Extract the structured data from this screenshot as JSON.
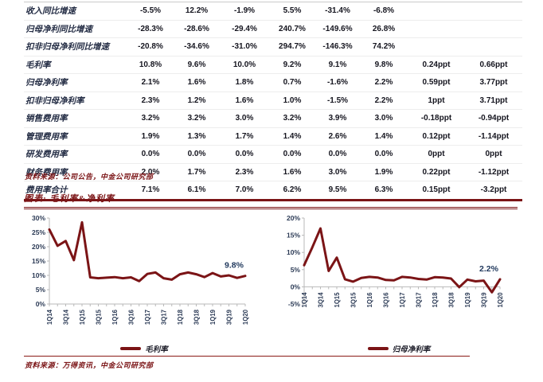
{
  "colors": {
    "accent": "#7b1416",
    "line": "#7b1416",
    "axis_line": "#b9b9b9",
    "axis_text": "#2b3a55",
    "end_label_text": "#223a5e",
    "table_rule": "#7b1416",
    "value_text": "#15151f"
  },
  "table": {
    "rows": [
      {
        "label": "收入同比增速",
        "values": [
          "-5.5%",
          "12.2%",
          "-1.9%",
          "5.5%",
          "-31.4%",
          "-6.8%",
          "",
          ""
        ]
      },
      {
        "label": "归母净利同比增速",
        "values": [
          "-28.3%",
          "-28.6%",
          "-29.4%",
          "240.7%",
          "-149.6%",
          "26.8%",
          "",
          ""
        ]
      },
      {
        "label": "扣非归母净利同比增速",
        "values": [
          "-20.8%",
          "-34.6%",
          "-31.0%",
          "294.7%",
          "-146.3%",
          "74.2%",
          "",
          ""
        ]
      },
      {
        "label": "毛利率",
        "values": [
          "10.8%",
          "9.6%",
          "10.0%",
          "9.2%",
          "9.1%",
          "9.8%",
          "0.24ppt",
          "0.66ppt"
        ]
      },
      {
        "label": "归母净利率",
        "values": [
          "2.1%",
          "1.6%",
          "1.8%",
          "0.7%",
          "-1.6%",
          "2.2%",
          "0.59ppt",
          "3.77ppt"
        ]
      },
      {
        "label": "扣非归母净利率",
        "values": [
          "2.3%",
          "1.2%",
          "1.6%",
          "1.0%",
          "-1.5%",
          "2.2%",
          "1ppt",
          "3.71ppt"
        ]
      },
      {
        "label": "销售费用率",
        "values": [
          "3.2%",
          "3.2%",
          "3.0%",
          "3.2%",
          "3.9%",
          "3.0%",
          "-0.18ppt",
          "-0.94ppt"
        ]
      },
      {
        "label": "管理费用率",
        "values": [
          "1.9%",
          "1.3%",
          "1.7%",
          "1.4%",
          "2.6%",
          "1.4%",
          "0.12ppt",
          "-1.14ppt"
        ]
      },
      {
        "label": "研发费用率",
        "values": [
          "0.0%",
          "0.0%",
          "0.0%",
          "0.0%",
          "0.0%",
          "0.0%",
          "0ppt",
          "0ppt"
        ]
      },
      {
        "label": "财务费用率",
        "values": [
          "2.0%",
          "1.7%",
          "2.3%",
          "1.6%",
          "3.0%",
          "1.9%",
          "0.22ppt",
          "-1.12ppt"
        ]
      },
      {
        "label": "费用率合计",
        "values": [
          "7.1%",
          "6.1%",
          "7.0%",
          "6.2%",
          "9.5%",
          "6.3%",
          "0.15ppt",
          "-3.2ppt"
        ]
      }
    ]
  },
  "table_source": "资料来源：公司公告，中金公司研究部",
  "figure": {
    "title": "图表: 毛利率&净利率"
  },
  "chart_data": [
    {
      "type": "line",
      "title": "毛利率",
      "x": [
        "1Q14",
        "2Q14",
        "3Q14",
        "4Q14",
        "1Q15",
        "2Q15",
        "3Q15",
        "4Q15",
        "1Q16",
        "2Q16",
        "3Q16",
        "4Q16",
        "1Q17",
        "2Q17",
        "3Q17",
        "4Q17",
        "1Q18",
        "2Q18",
        "3Q18",
        "4Q18",
        "1Q19",
        "2Q19",
        "3Q19",
        "4Q19",
        "1Q20"
      ],
      "x_tick_labels": [
        "1Q14",
        "3Q14",
        "1Q15",
        "3Q15",
        "1Q16",
        "3Q16",
        "1Q17",
        "3Q17",
        "1Q18",
        "3Q18",
        "1Q19",
        "3Q19",
        "1Q20"
      ],
      "series": [
        {
          "name": "毛利率",
          "values": [
            26.0,
            20.3,
            22.0,
            15.3,
            28.5,
            9.3,
            9.0,
            9.2,
            9.4,
            9.0,
            9.3,
            8.0,
            10.5,
            11.0,
            9.0,
            8.5,
            10.4,
            11.0,
            10.4,
            9.4,
            10.8,
            9.6,
            10.0,
            9.1,
            9.8
          ]
        }
      ],
      "ylim": [
        0,
        30
      ],
      "ytick_step": 5,
      "grid": false,
      "legend": "毛利率",
      "legend_position": "bottom",
      "end_label": "9.8%"
    },
    {
      "type": "line",
      "title": "归母净利率",
      "x": [
        "1Q14",
        "2Q14",
        "3Q14",
        "4Q14",
        "1Q15",
        "2Q15",
        "3Q15",
        "4Q15",
        "1Q16",
        "2Q16",
        "3Q16",
        "4Q16",
        "1Q17",
        "2Q17",
        "3Q17",
        "4Q17",
        "1Q18",
        "2Q18",
        "3Q18",
        "4Q18",
        "1Q19",
        "2Q19",
        "3Q19",
        "4Q19",
        "1Q20"
      ],
      "x_tick_labels": [
        "1Q14",
        "3Q14",
        "1Q15",
        "3Q15",
        "1Q16",
        "3Q16",
        "1Q17",
        "3Q17",
        "1Q18",
        "3Q18",
        "1Q19",
        "3Q19",
        "1Q20"
      ],
      "series": [
        {
          "name": "归母净利率",
          "values": [
            6.3,
            11.5,
            17.0,
            4.6,
            8.5,
            2.2,
            1.5,
            2.6,
            2.9,
            2.7,
            2.0,
            1.9,
            2.9,
            2.7,
            2.3,
            2.1,
            2.8,
            2.7,
            2.4,
            -0.1,
            2.1,
            1.6,
            1.8,
            -1.6,
            2.2
          ]
        }
      ],
      "ylim": [
        -5,
        20
      ],
      "ytick_step": 5,
      "grid": false,
      "legend": "归母净利率",
      "legend_position": "bottom",
      "end_label": "2.2%"
    }
  ],
  "bottom_source": "资料来源：万得资讯，中金公司研究部"
}
